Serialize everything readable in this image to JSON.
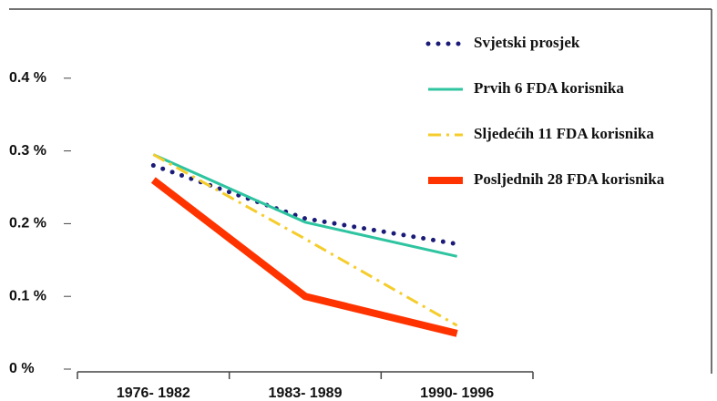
{
  "chart_data": {
    "type": "line",
    "categories": [
      "1976- 1982",
      "1983- 1989",
      "1990- 1996"
    ],
    "series": [
      {
        "name": "Svjetski prosjek",
        "color": "#1a1a78",
        "line_style": "dotted",
        "values": [
          0.28,
          0.207,
          0.172
        ]
      },
      {
        "name": "Prvih 6 FDA korisnika",
        "color": "#2ec4a0",
        "line_style": "solid",
        "values": [
          0.295,
          0.202,
          0.155
        ]
      },
      {
        "name": "Sljedećih 11 FDA korisnika",
        "color": "#f5cc2a",
        "line_style": "dashdot",
        "values": [
          0.295,
          0.179,
          0.06
        ]
      },
      {
        "name": "Posljednih 28 FDA korisnika",
        "color": "#ff3300",
        "line_style": "thick",
        "values": [
          0.26,
          0.1,
          0.049
        ]
      }
    ],
    "ylim": [
      0,
      0.5
    ],
    "yticks": [
      {
        "value": 0,
        "label": "0 %"
      },
      {
        "value": 0.1,
        "label": "0.1 %"
      },
      {
        "value": 0.2,
        "label": "0.2 %"
      },
      {
        "value": 0.3,
        "label": "0.3 %"
      },
      {
        "value": 0.4,
        "label": "0.4 %"
      }
    ],
    "legend": "top-right"
  }
}
